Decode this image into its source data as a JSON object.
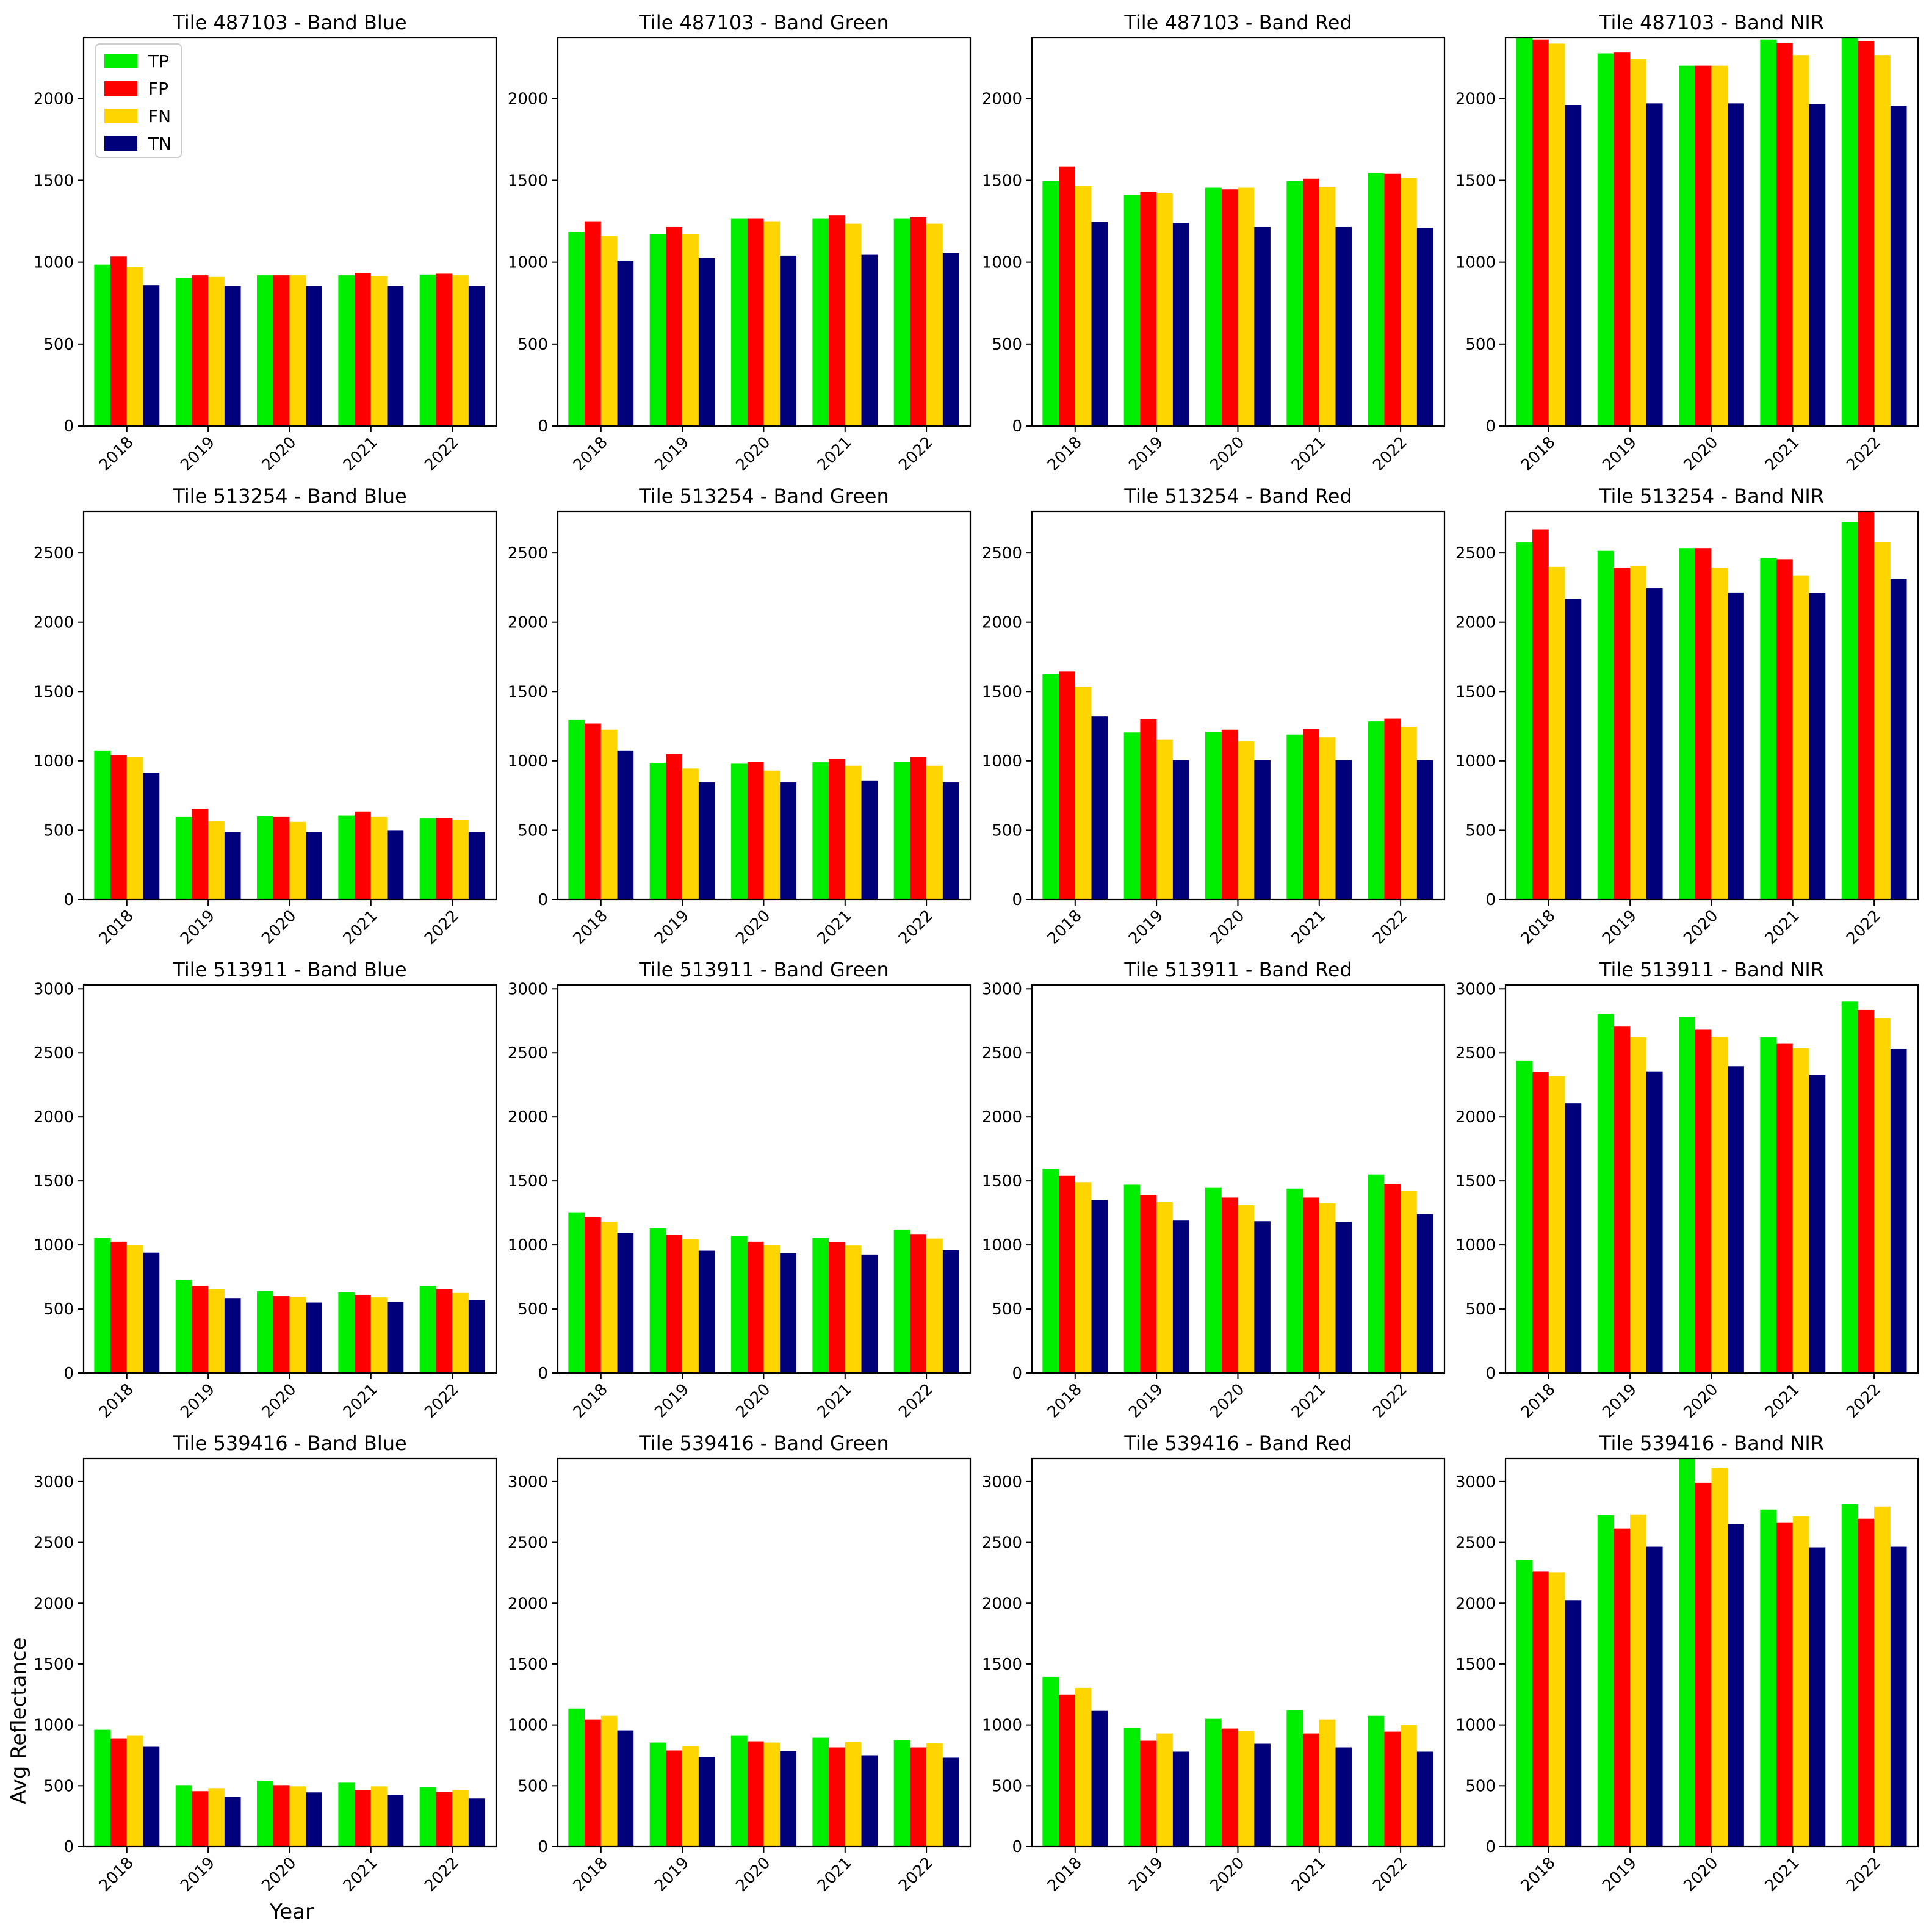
{
  "figure": {
    "ylabel": "Avg Reflectance",
    "xlabel": "Year"
  },
  "legend": {
    "location": "upper-left of first panel",
    "items": [
      {
        "label": "TP",
        "color": "#00ee00"
      },
      {
        "label": "FP",
        "color": "#ff0000"
      },
      {
        "label": "FN",
        "color": "#ffd500"
      },
      {
        "label": "TN",
        "color": "#00007a"
      }
    ]
  },
  "chart_data": [
    {
      "type": "bar",
      "title": "Tile 487103 - Band Blue",
      "categories": [
        "2018",
        "2019",
        "2020",
        "2021",
        "2022"
      ],
      "ylim": [
        0,
        2370
      ],
      "yticks": [
        0,
        500,
        1000,
        1500,
        2000
      ],
      "series": [
        {
          "name": "TP",
          "values": [
            985,
            905,
            920,
            920,
            925
          ]
        },
        {
          "name": "FP",
          "values": [
            1035,
            920,
            920,
            935,
            930
          ]
        },
        {
          "name": "FN",
          "values": [
            970,
            910,
            920,
            915,
            920
          ]
        },
        {
          "name": "TN",
          "values": [
            860,
            855,
            855,
            855,
            855
          ]
        }
      ]
    },
    {
      "type": "bar",
      "title": "Tile 487103 - Band Green",
      "categories": [
        "2018",
        "2019",
        "2020",
        "2021",
        "2022"
      ],
      "ylim": [
        0,
        2370
      ],
      "yticks": [
        0,
        500,
        1000,
        1500,
        2000
      ],
      "series": [
        {
          "name": "TP",
          "values": [
            1185,
            1170,
            1265,
            1265,
            1265
          ]
        },
        {
          "name": "FP",
          "values": [
            1250,
            1215,
            1265,
            1285,
            1275
          ]
        },
        {
          "name": "FN",
          "values": [
            1160,
            1170,
            1250,
            1235,
            1235
          ]
        },
        {
          "name": "TN",
          "values": [
            1010,
            1025,
            1040,
            1045,
            1055
          ]
        }
      ]
    },
    {
      "type": "bar",
      "title": "Tile 487103 - Band Red",
      "categories": [
        "2018",
        "2019",
        "2020",
        "2021",
        "2022"
      ],
      "ylim": [
        0,
        2370
      ],
      "yticks": [
        0,
        500,
        1000,
        1500,
        2000
      ],
      "series": [
        {
          "name": "TP",
          "values": [
            1495,
            1410,
            1455,
            1495,
            1545
          ]
        },
        {
          "name": "FP",
          "values": [
            1585,
            1430,
            1445,
            1510,
            1540
          ]
        },
        {
          "name": "FN",
          "values": [
            1465,
            1420,
            1455,
            1460,
            1515
          ]
        },
        {
          "name": "TN",
          "values": [
            1245,
            1240,
            1215,
            1215,
            1210
          ]
        }
      ]
    },
    {
      "type": "bar",
      "title": "Tile 487103 - Band NIR",
      "categories": [
        "2018",
        "2019",
        "2020",
        "2021",
        "2022"
      ],
      "ylim": [
        0,
        2370
      ],
      "yticks": [
        0,
        500,
        1000,
        1500,
        2000
      ],
      "series": [
        {
          "name": "TP",
          "values": [
            2370,
            2275,
            2200,
            2360,
            2370
          ]
        },
        {
          "name": "FP",
          "values": [
            2360,
            2280,
            2200,
            2340,
            2350
          ]
        },
        {
          "name": "FN",
          "values": [
            2335,
            2240,
            2200,
            2265,
            2265
          ]
        },
        {
          "name": "TN",
          "values": [
            1960,
            1970,
            1970,
            1965,
            1955
          ]
        }
      ]
    },
    {
      "type": "bar",
      "title": "Tile 513254 - Band Blue",
      "categories": [
        "2018",
        "2019",
        "2020",
        "2021",
        "2022"
      ],
      "ylim": [
        0,
        2800
      ],
      "yticks": [
        0,
        500,
        1000,
        1500,
        2000,
        2500
      ],
      "series": [
        {
          "name": "TP",
          "values": [
            1075,
            595,
            600,
            605,
            585
          ]
        },
        {
          "name": "FP",
          "values": [
            1040,
            655,
            595,
            635,
            590
          ]
        },
        {
          "name": "FN",
          "values": [
            1030,
            565,
            560,
            595,
            575
          ]
        },
        {
          "name": "TN",
          "values": [
            915,
            485,
            485,
            500,
            485
          ]
        }
      ]
    },
    {
      "type": "bar",
      "title": "Tile 513254 - Band Green",
      "categories": [
        "2018",
        "2019",
        "2020",
        "2021",
        "2022"
      ],
      "ylim": [
        0,
        2800
      ],
      "yticks": [
        0,
        500,
        1000,
        1500,
        2000,
        2500
      ],
      "series": [
        {
          "name": "TP",
          "values": [
            1295,
            985,
            980,
            990,
            995
          ]
        },
        {
          "name": "FP",
          "values": [
            1270,
            1050,
            995,
            1015,
            1030
          ]
        },
        {
          "name": "FN",
          "values": [
            1225,
            945,
            930,
            965,
            965
          ]
        },
        {
          "name": "TN",
          "values": [
            1075,
            845,
            845,
            855,
            845
          ]
        }
      ]
    },
    {
      "type": "bar",
      "title": "Tile 513254 - Band Red",
      "categories": [
        "2018",
        "2019",
        "2020",
        "2021",
        "2022"
      ],
      "ylim": [
        0,
        2800
      ],
      "yticks": [
        0,
        500,
        1000,
        1500,
        2000,
        2500
      ],
      "series": [
        {
          "name": "TP",
          "values": [
            1625,
            1205,
            1210,
            1190,
            1285
          ]
        },
        {
          "name": "FP",
          "values": [
            1645,
            1300,
            1225,
            1230,
            1305
          ]
        },
        {
          "name": "FN",
          "values": [
            1535,
            1155,
            1140,
            1170,
            1245
          ]
        },
        {
          "name": "TN",
          "values": [
            1320,
            1005,
            1005,
            1005,
            1005
          ]
        }
      ]
    },
    {
      "type": "bar",
      "title": "Tile 513254 - Band NIR",
      "categories": [
        "2018",
        "2019",
        "2020",
        "2021",
        "2022"
      ],
      "ylim": [
        0,
        2800
      ],
      "yticks": [
        0,
        500,
        1000,
        1500,
        2000,
        2500
      ],
      "series": [
        {
          "name": "TP",
          "values": [
            2575,
            2515,
            2535,
            2465,
            2725
          ]
        },
        {
          "name": "FP",
          "values": [
            2670,
            2395,
            2535,
            2455,
            2800
          ]
        },
        {
          "name": "FN",
          "values": [
            2400,
            2405,
            2395,
            2335,
            2580
          ]
        },
        {
          "name": "TN",
          "values": [
            2170,
            2245,
            2215,
            2210,
            2315
          ]
        }
      ]
    },
    {
      "type": "bar",
      "title": "Tile 513911 - Band Blue",
      "categories": [
        "2018",
        "2019",
        "2020",
        "2021",
        "2022"
      ],
      "ylim": [
        0,
        3030
      ],
      "yticks": [
        0,
        500,
        1000,
        1500,
        2000,
        2500,
        3000
      ],
      "series": [
        {
          "name": "TP",
          "values": [
            1055,
            725,
            640,
            630,
            680
          ]
        },
        {
          "name": "FP",
          "values": [
            1025,
            680,
            600,
            610,
            655
          ]
        },
        {
          "name": "FN",
          "values": [
            1000,
            655,
            595,
            590,
            625
          ]
        },
        {
          "name": "TN",
          "values": [
            940,
            585,
            550,
            555,
            570
          ]
        }
      ]
    },
    {
      "type": "bar",
      "title": "Tile 513911 - Band Green",
      "categories": [
        "2018",
        "2019",
        "2020",
        "2021",
        "2022"
      ],
      "ylim": [
        0,
        3030
      ],
      "yticks": [
        0,
        500,
        1000,
        1500,
        2000,
        2500,
        3000
      ],
      "series": [
        {
          "name": "TP",
          "values": [
            1255,
            1130,
            1070,
            1055,
            1120
          ]
        },
        {
          "name": "FP",
          "values": [
            1215,
            1080,
            1025,
            1020,
            1085
          ]
        },
        {
          "name": "FN",
          "values": [
            1180,
            1045,
            1000,
            995,
            1050
          ]
        },
        {
          "name": "TN",
          "values": [
            1095,
            955,
            935,
            925,
            960
          ]
        }
      ]
    },
    {
      "type": "bar",
      "title": "Tile 513911 - Band Red",
      "categories": [
        "2018",
        "2019",
        "2020",
        "2021",
        "2022"
      ],
      "ylim": [
        0,
        3030
      ],
      "yticks": [
        0,
        500,
        1000,
        1500,
        2000,
        2500,
        3000
      ],
      "series": [
        {
          "name": "TP",
          "values": [
            1595,
            1470,
            1450,
            1440,
            1550
          ]
        },
        {
          "name": "FP",
          "values": [
            1540,
            1390,
            1370,
            1370,
            1475
          ]
        },
        {
          "name": "FN",
          "values": [
            1490,
            1335,
            1310,
            1325,
            1420
          ]
        },
        {
          "name": "TN",
          "values": [
            1350,
            1190,
            1185,
            1180,
            1240
          ]
        }
      ]
    },
    {
      "type": "bar",
      "title": "Tile 513911 - Band NIR",
      "categories": [
        "2018",
        "2019",
        "2020",
        "2021",
        "2022"
      ],
      "ylim": [
        0,
        3030
      ],
      "yticks": [
        0,
        500,
        1000,
        1500,
        2000,
        2500,
        3000
      ],
      "series": [
        {
          "name": "TP",
          "values": [
            2440,
            2805,
            2780,
            2620,
            2900
          ]
        },
        {
          "name": "FP",
          "values": [
            2350,
            2705,
            2680,
            2570,
            2835
          ]
        },
        {
          "name": "FN",
          "values": [
            2315,
            2620,
            2625,
            2535,
            2770
          ]
        },
        {
          "name": "TN",
          "values": [
            2105,
            2355,
            2395,
            2325,
            2530
          ]
        }
      ]
    },
    {
      "type": "bar",
      "title": "Tile 539416 - Band Blue",
      "categories": [
        "2018",
        "2019",
        "2020",
        "2021",
        "2022"
      ],
      "ylim": [
        0,
        3190
      ],
      "yticks": [
        0,
        500,
        1000,
        1500,
        2000,
        2500,
        3000
      ],
      "series": [
        {
          "name": "TP",
          "values": [
            960,
            505,
            540,
            525,
            490
          ]
        },
        {
          "name": "FP",
          "values": [
            890,
            455,
            505,
            465,
            450
          ]
        },
        {
          "name": "FN",
          "values": [
            915,
            480,
            495,
            495,
            465
          ]
        },
        {
          "name": "TN",
          "values": [
            820,
            410,
            445,
            425,
            395
          ]
        }
      ]
    },
    {
      "type": "bar",
      "title": "Tile 539416 - Band Green",
      "categories": [
        "2018",
        "2019",
        "2020",
        "2021",
        "2022"
      ],
      "ylim": [
        0,
        3190
      ],
      "yticks": [
        0,
        500,
        1000,
        1500,
        2000,
        2500,
        3000
      ],
      "series": [
        {
          "name": "TP",
          "values": [
            1135,
            855,
            915,
            895,
            875
          ]
        },
        {
          "name": "FP",
          "values": [
            1045,
            790,
            865,
            815,
            815
          ]
        },
        {
          "name": "FN",
          "values": [
            1075,
            825,
            855,
            860,
            850
          ]
        },
        {
          "name": "TN",
          "values": [
            955,
            735,
            785,
            750,
            730
          ]
        }
      ]
    },
    {
      "type": "bar",
      "title": "Tile 539416 - Band Red",
      "categories": [
        "2018",
        "2019",
        "2020",
        "2021",
        "2022"
      ],
      "ylim": [
        0,
        3190
      ],
      "yticks": [
        0,
        500,
        1000,
        1500,
        2000,
        2500,
        3000
      ],
      "series": [
        {
          "name": "TP",
          "values": [
            1395,
            975,
            1050,
            1120,
            1075
          ]
        },
        {
          "name": "FP",
          "values": [
            1250,
            870,
            970,
            930,
            945
          ]
        },
        {
          "name": "FN",
          "values": [
            1305,
            930,
            950,
            1045,
            1000
          ]
        },
        {
          "name": "TN",
          "values": [
            1115,
            780,
            845,
            815,
            780
          ]
        }
      ]
    },
    {
      "type": "bar",
      "title": "Tile 539416 - Band NIR",
      "categories": [
        "2018",
        "2019",
        "2020",
        "2021",
        "2022"
      ],
      "ylim": [
        0,
        3190
      ],
      "yticks": [
        0,
        500,
        1000,
        1500,
        2000,
        2500,
        3000
      ],
      "series": [
        {
          "name": "TP",
          "values": [
            2355,
            2725,
            3190,
            2770,
            2815
          ]
        },
        {
          "name": "FP",
          "values": [
            2260,
            2615,
            2990,
            2665,
            2695
          ]
        },
        {
          "name": "FN",
          "values": [
            2255,
            2730,
            3110,
            2715,
            2795
          ]
        },
        {
          "name": "TN",
          "values": [
            2025,
            2465,
            2650,
            2460,
            2465
          ]
        }
      ]
    }
  ]
}
